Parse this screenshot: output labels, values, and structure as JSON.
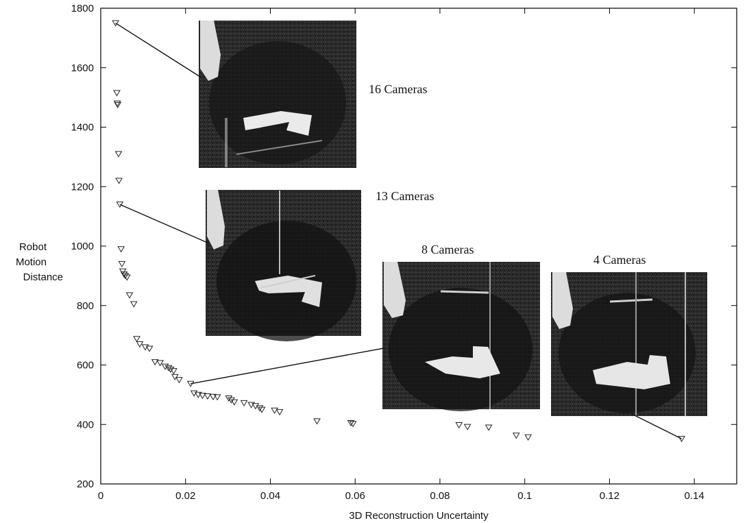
{
  "chart_data": {
    "type": "scatter",
    "title": "",
    "xlabel": "3D Reconstruction Uncertainty",
    "ylabel": [
      "Robot",
      "Motion",
      "Distance"
    ],
    "xlim": [
      0,
      0.15
    ],
    "ylim": [
      200,
      1800
    ],
    "x_ticks": [
      "0",
      "0.02",
      "0.04",
      "0.06",
      "0.08",
      "0.1",
      "0.12",
      "0.14"
    ],
    "x_tick_values": [
      0,
      0.02,
      0.04,
      0.06,
      0.08,
      0.1,
      0.12,
      0.14
    ],
    "y_ticks": [
      "200",
      "400",
      "600",
      "800",
      "1000",
      "1200",
      "1400",
      "1600",
      "1800"
    ],
    "y_tick_values": [
      200,
      400,
      600,
      800,
      1000,
      1200,
      1400,
      1600,
      1800
    ],
    "marker": "open-triangle-down",
    "grid": false,
    "points": [
      [
        0.0035,
        1750
      ],
      [
        0.0038,
        1515
      ],
      [
        0.0039,
        1480
      ],
      [
        0.004,
        1475
      ],
      [
        0.0042,
        1310
      ],
      [
        0.0043,
        1220
      ],
      [
        0.0045,
        1140
      ],
      [
        0.0048,
        990
      ],
      [
        0.005,
        940
      ],
      [
        0.0052,
        915
      ],
      [
        0.0055,
        905
      ],
      [
        0.0058,
        900
      ],
      [
        0.0062,
        895
      ],
      [
        0.0068,
        835
      ],
      [
        0.0078,
        805
      ],
      [
        0.0085,
        688
      ],
      [
        0.0092,
        670
      ],
      [
        0.0105,
        660
      ],
      [
        0.0115,
        655
      ],
      [
        0.0128,
        610
      ],
      [
        0.014,
        607
      ],
      [
        0.0152,
        595
      ],
      [
        0.016,
        590
      ],
      [
        0.0165,
        585
      ],
      [
        0.0172,
        580
      ],
      [
        0.0175,
        560
      ],
      [
        0.0185,
        550
      ],
      [
        0.0212,
        537
      ],
      [
        0.022,
        505
      ],
      [
        0.023,
        500
      ],
      [
        0.024,
        497
      ],
      [
        0.0252,
        495
      ],
      [
        0.0265,
        493
      ],
      [
        0.0275,
        492
      ],
      [
        0.0302,
        488
      ],
      [
        0.0308,
        482
      ],
      [
        0.0315,
        475
      ],
      [
        0.0338,
        472
      ],
      [
        0.0355,
        466
      ],
      [
        0.0365,
        462
      ],
      [
        0.0375,
        455
      ],
      [
        0.038,
        450
      ],
      [
        0.041,
        447
      ],
      [
        0.0422,
        442
      ],
      [
        0.051,
        411
      ],
      [
        0.059,
        405
      ],
      [
        0.0595,
        402
      ],
      [
        0.0845,
        398
      ],
      [
        0.0865,
        392
      ],
      [
        0.0915,
        390
      ],
      [
        0.098,
        363
      ],
      [
        0.1008,
        357
      ],
      [
        0.137,
        352
      ]
    ],
    "annotations": [
      {
        "label": "16 Cameras",
        "point": [
          0.0035,
          1750
        ]
      },
      {
        "label": "13 Cameras",
        "point": [
          0.0045,
          1140
        ]
      },
      {
        "label": "8 Cameras",
        "point": [
          0.0212,
          537
        ]
      },
      {
        "label": "4 Cameras",
        "point": [
          0.137,
          352
        ]
      }
    ]
  }
}
